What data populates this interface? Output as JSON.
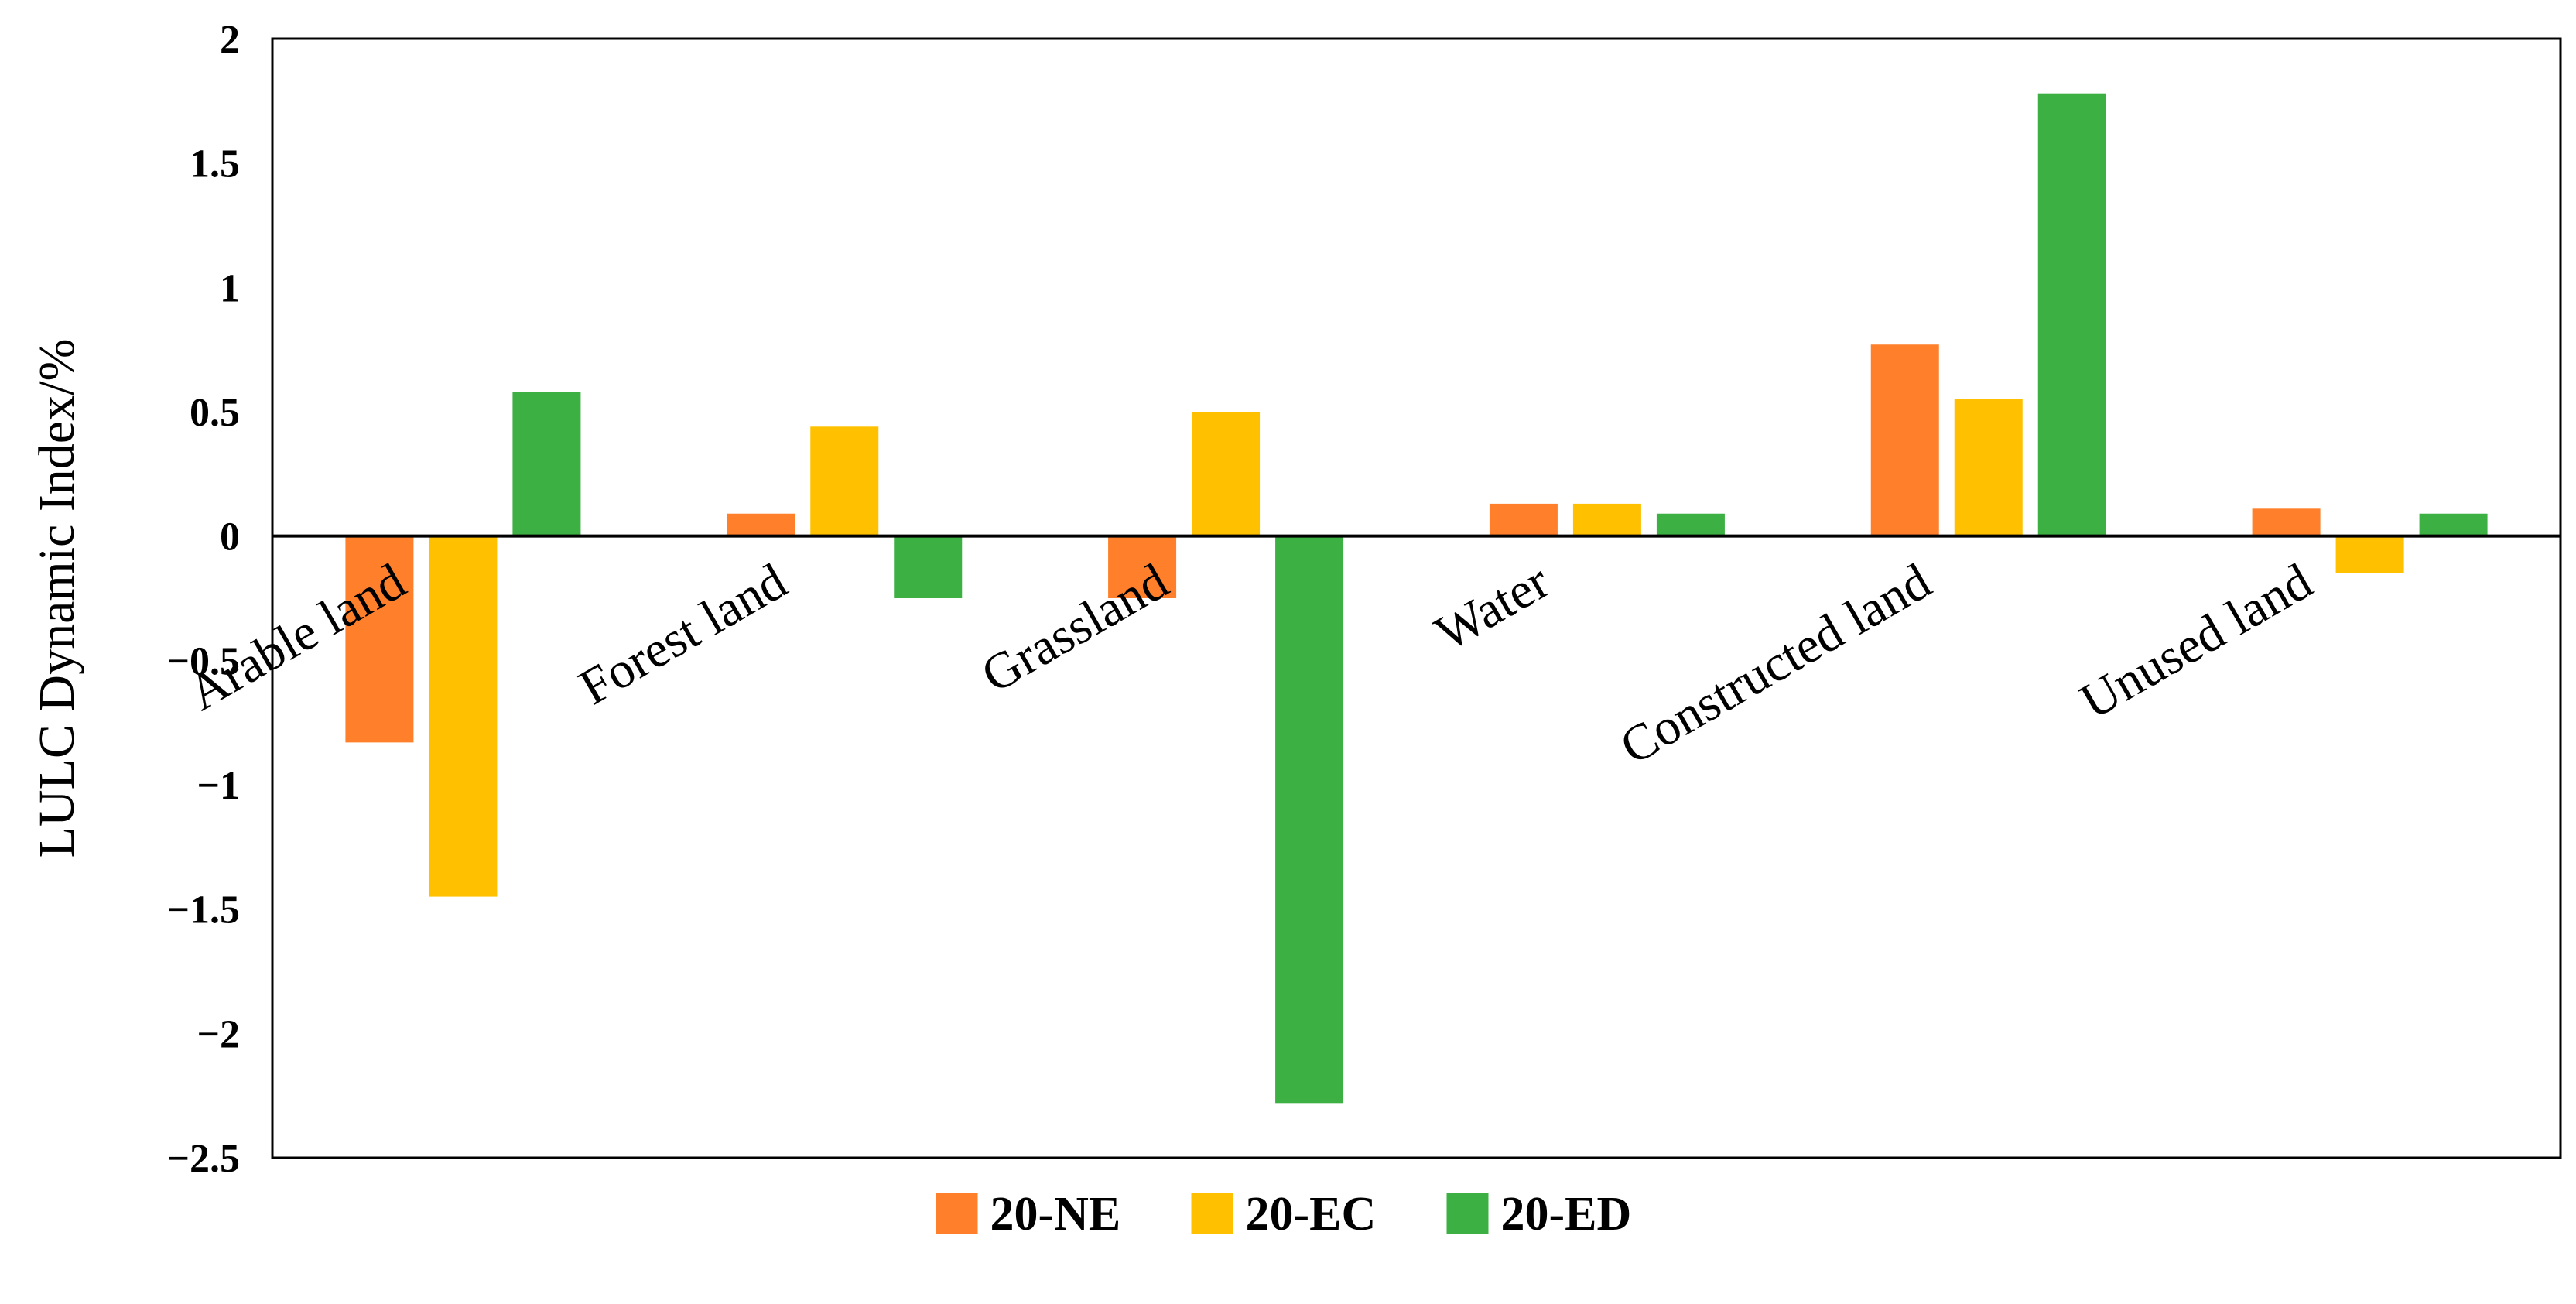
{
  "chart_data": {
    "type": "bar",
    "title": "",
    "xlabel": "",
    "ylabel": "LULC Dynamic Index/%",
    "ylim": [
      -2.5,
      2
    ],
    "yticks": [
      2,
      1.5,
      1,
      0.5,
      0,
      -0.5,
      -1,
      -1.5,
      -2,
      -2.5
    ],
    "ytick_labels": [
      "2",
      "1.5",
      "1",
      "0.5",
      "0",
      "−0.5",
      "−1",
      "−1.5",
      "−2",
      "−2.5"
    ],
    "grid": false,
    "legend_position": "bottom",
    "categories": [
      "Arable land",
      "Forest land",
      "Grassland",
      "Water",
      "Constructed land",
      "Unused land"
    ],
    "series": [
      {
        "name": "20-NE",
        "color": "#FF7F2A",
        "values": [
          -0.83,
          0.09,
          -0.25,
          0.13,
          0.77,
          0.11
        ]
      },
      {
        "name": "20-EC",
        "color": "#FFC000",
        "values": [
          -1.45,
          0.44,
          0.5,
          0.13,
          0.55,
          -0.15
        ]
      },
      {
        "name": "20-ED",
        "color": "#3CB043",
        "values": [
          0.58,
          -0.25,
          -2.28,
          0.09,
          1.78,
          0.09
        ]
      }
    ]
  }
}
